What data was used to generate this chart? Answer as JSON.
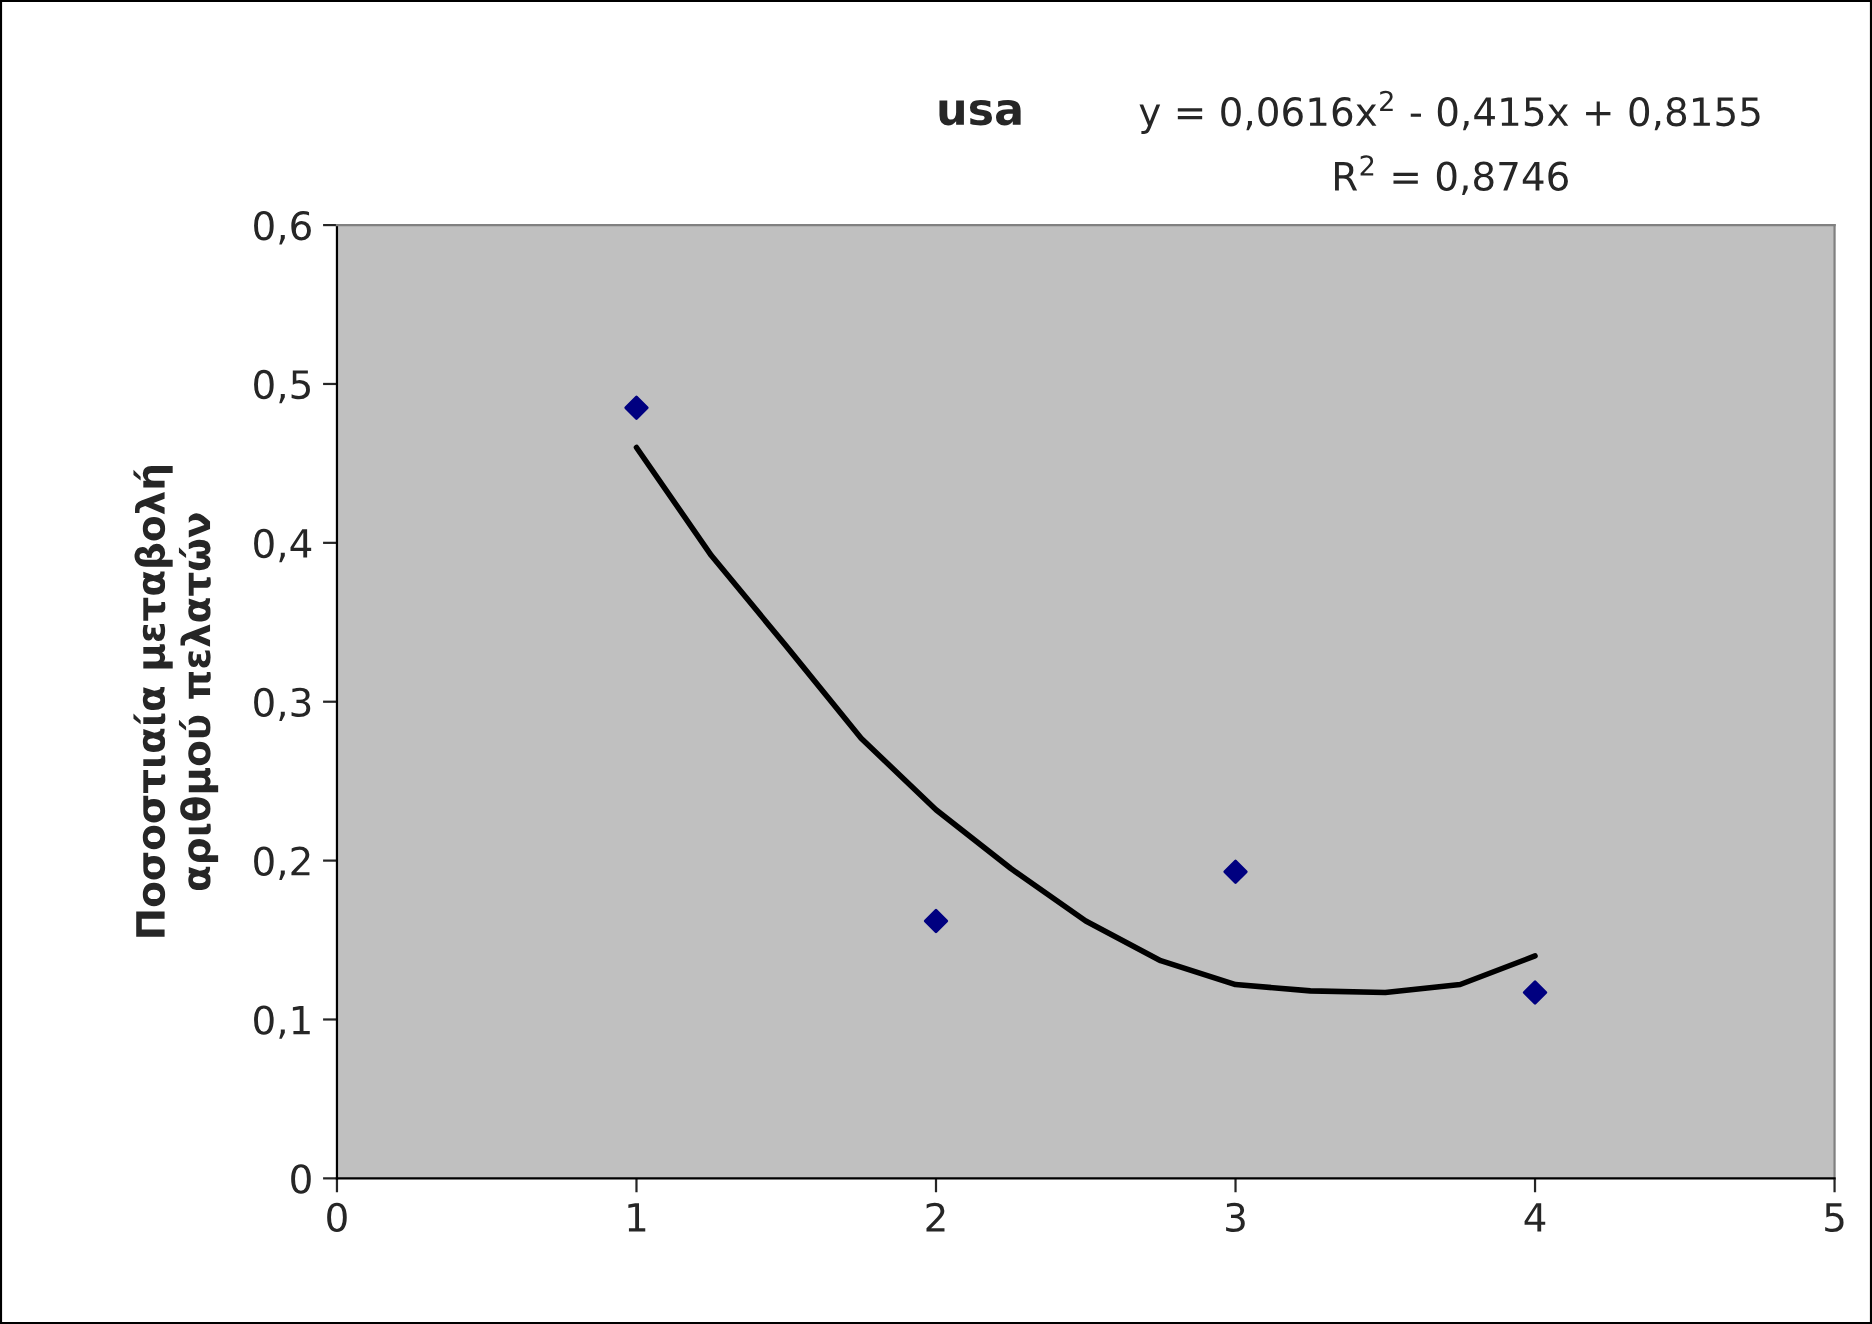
{
  "chart_data": {
    "type": "scatter",
    "title": "usa",
    "ylabel": "Ποσοστιαία μεταβολή\nαριθμού πελατών",
    "annotations": [
      "y = 0,0616x$^{2}$ - 0,415x + 0,8155",
      "R$^{2}$ = 0,8746"
    ],
    "xlim": [
      0,
      5
    ],
    "xticks": [
      0,
      1,
      2,
      3,
      4,
      5
    ],
    "ylim": [
      0,
      0.6
    ],
    "yticks": [
      {
        "value": 0,
        "label": "0"
      },
      {
        "value": 0.1,
        "label": "0,1"
      },
      {
        "value": 0.2,
        "label": "0,2"
      },
      {
        "value": 0.3,
        "label": "0,3"
      },
      {
        "value": 0.4,
        "label": "0,4"
      },
      {
        "value": 0.5,
        "label": "0,5"
      },
      {
        "value": 0.6,
        "label": "0,6"
      }
    ],
    "grid": false,
    "legend": false,
    "series": [
      {
        "color": "#000080",
        "marker": "diamond",
        "x": [
          1,
          2,
          3,
          4
        ],
        "values": [
          0.485,
          0.162,
          0.193,
          0.117
        ]
      },
      {
        "type": "line",
        "color": "#000000",
        "marker": "none",
        "line_style": "solid",
        "x": [
          1,
          1.25,
          1.5,
          1.75,
          2,
          2.25,
          2.5,
          2.75,
          3,
          3.25,
          3.5,
          3.75,
          4
        ],
        "values": [
          0.46,
          0.392,
          0.335,
          0.277,
          0.232,
          0.195,
          0.162,
          0.137,
          0.122,
          0.118,
          0.117,
          0.122,
          0.14
        ]
      }
    ]
  }
}
